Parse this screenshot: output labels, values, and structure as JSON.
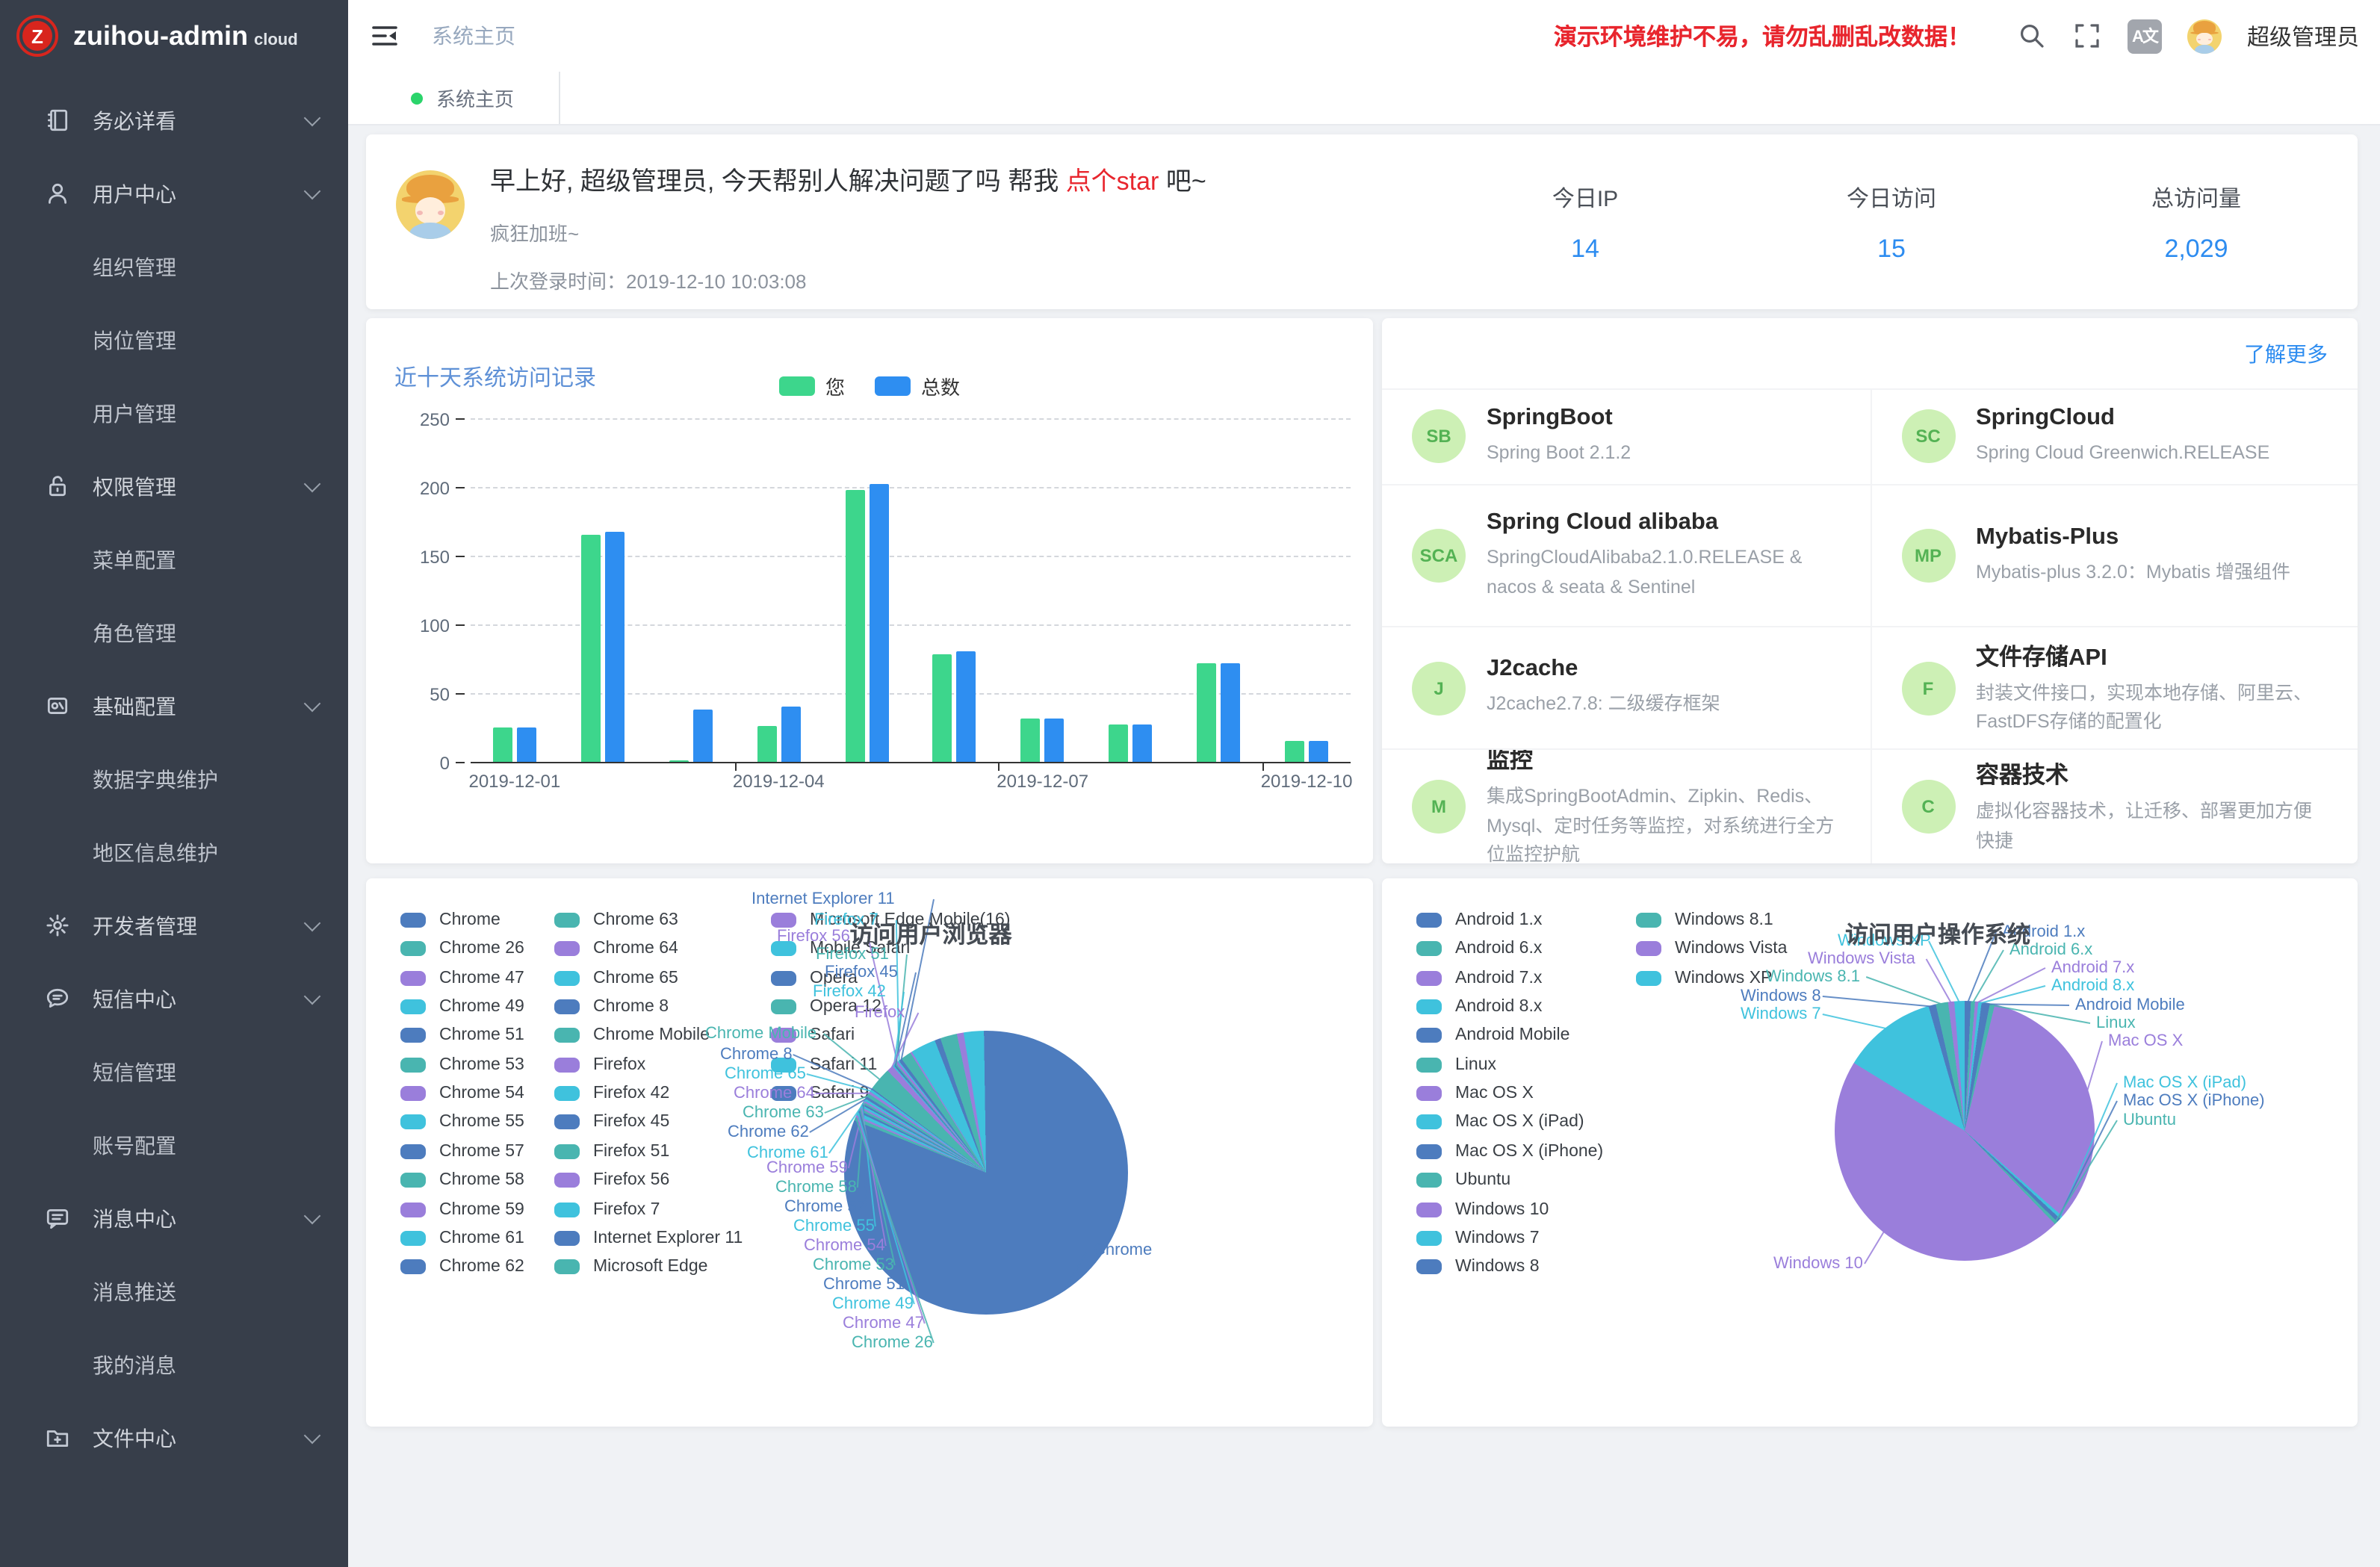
{
  "colors": {
    "accent_blue": "#2d8cf0",
    "danger_red": "#e8252d",
    "tab_dot_green": "#2bd46b",
    "sidebar_bg": "#373e4a",
    "palette": [
      "#4d7cbe",
      "#49b5b0",
      "#9a7edb",
      "#3fc2dd"
    ]
  },
  "sidebar": {
    "logo_letter": "Z",
    "logo_text": "zuihou-admin",
    "logo_badge": "cloud",
    "menu": [
      {
        "label": "务必详看",
        "type": "top",
        "icon": "book"
      },
      {
        "label": "用户中心",
        "type": "top",
        "icon": "user"
      },
      {
        "label": "组织管理",
        "type": "sub"
      },
      {
        "label": "岗位管理",
        "type": "sub"
      },
      {
        "label": "用户管理",
        "type": "sub"
      },
      {
        "label": "权限管理",
        "type": "top",
        "icon": "lock"
      },
      {
        "label": "菜单配置",
        "type": "sub"
      },
      {
        "label": "角色管理",
        "type": "sub"
      },
      {
        "label": "基础配置",
        "type": "top",
        "icon": "config"
      },
      {
        "label": "数据字典维护",
        "type": "sub"
      },
      {
        "label": "地区信息维护",
        "type": "sub"
      },
      {
        "label": "开发者管理",
        "type": "top",
        "icon": "gear"
      },
      {
        "label": "短信中心",
        "type": "top",
        "icon": "chat"
      },
      {
        "label": "短信管理",
        "type": "sub"
      },
      {
        "label": "账号配置",
        "type": "sub"
      },
      {
        "label": "消息中心",
        "type": "top",
        "icon": "message"
      },
      {
        "label": "消息推送",
        "type": "sub"
      },
      {
        "label": "我的消息",
        "type": "sub"
      },
      {
        "label": "文件中心",
        "type": "top",
        "icon": "folder"
      }
    ]
  },
  "topbar": {
    "breadcrumb": "系统主页",
    "warning": "演示环境维护不易，请勿乱删乱改数据！",
    "icons": [
      "search",
      "fullscreen",
      "translate"
    ],
    "translate_label": "A文",
    "username": "超级管理员"
  },
  "tabbar": {
    "active_tab": "系统主页"
  },
  "greeting": {
    "hello_prefix": "早上好, 超级管理员, 今天帮别人解决问题了吗 帮我 ",
    "star_text": "点个star",
    "hello_suffix": " 吧~",
    "subtitle": "疯狂加班~",
    "last_login_label": "上次登录时间：",
    "last_login_value": "2019-12-10 10:03:08"
  },
  "stats": [
    {
      "label": "今日IP",
      "value": "14"
    },
    {
      "label": "今日访问",
      "value": "15"
    },
    {
      "label": "总访问量",
      "value": "2,029"
    }
  ],
  "panel": {
    "more_link": "了解更多",
    "cards": [
      {
        "abbr": "SB",
        "title": "SpringBoot",
        "desc": "Spring Boot 2.1.2"
      },
      {
        "abbr": "SC",
        "title": "SpringCloud",
        "desc": "Spring Cloud Greenwich.RELEASE"
      },
      {
        "abbr": "SCA",
        "title": "Spring Cloud alibaba",
        "desc": "SpringCloudAlibaba2.1.0.RELEASE & nacos & seata & Sentinel"
      },
      {
        "abbr": "MP",
        "title": "Mybatis-Plus",
        "desc": "Mybatis-plus 3.2.0：Mybatis 增强组件"
      },
      {
        "abbr": "J",
        "title": "J2cache",
        "desc": "J2cache2.7.8: 二级缓存框架"
      },
      {
        "abbr": "F",
        "title": "文件存储API",
        "desc": "封装文件接口，实现本地存储、阿里云、FastDFS存储的配置化"
      },
      {
        "abbr": "M",
        "title": "监控",
        "desc": "集成SpringBootAdmin、Zipkin、Redis、Mysql、定时任务等监控，对系统进行全方位监控护航"
      },
      {
        "abbr": "C",
        "title": "容器技术",
        "desc": "虚拟化容器技术，让迁移、部署更加方便快捷"
      }
    ]
  },
  "chart_data": [
    {
      "type": "bar",
      "title": "近十天系统访问记录",
      "categories": [
        "2019-12-01",
        "2019-12-02",
        "2019-12-03",
        "2019-12-04",
        "2019-12-05",
        "2019-12-06",
        "2019-12-07",
        "2019-12-08",
        "2019-12-09",
        "2019-12-10"
      ],
      "series": [
        {
          "name": "您",
          "color": "#3dd68c",
          "values": [
            25,
            165,
            1,
            26,
            198,
            78,
            31,
            27,
            72,
            15
          ]
        },
        {
          "name": "总数",
          "color": "#2e8ef1",
          "values": [
            25,
            167,
            38,
            40,
            202,
            80,
            31,
            27,
            72,
            15
          ]
        }
      ],
      "xlabel": "",
      "ylabel": "",
      "ylim": [
        0,
        250
      ],
      "ytick_step": 50,
      "grid": "dashed",
      "legend_position": "top-center",
      "shown_x_labels": [
        "2019-12-01",
        "2019-12-04",
        "2019-12-07",
        "2019-12-10"
      ]
    },
    {
      "type": "pie",
      "title": "访问用户浏览器",
      "legend_position": "left-3-columns",
      "categories": [
        "Chrome",
        "Chrome 26",
        "Chrome 47",
        "Chrome 49",
        "Chrome 51",
        "Chrome 53",
        "Chrome 54",
        "Chrome 55",
        "Chrome 57",
        "Chrome 58",
        "Chrome 59",
        "Chrome 61",
        "Chrome 62",
        "Chrome 63",
        "Chrome 64",
        "Chrome 65",
        "Chrome 8",
        "Chrome Mobile",
        "Firefox",
        "Firefox 42",
        "Firefox 45",
        "Firefox 51",
        "Firefox 56",
        "Firefox 7",
        "Internet Explorer 11",
        "Microsoft Edge",
        "Microsoft Edge Mobile(16)",
        "Mobile Safari",
        "Opera",
        "Opera 12",
        "Safari",
        "Safari 11",
        "Safari 9"
      ],
      "values": [
        1690,
        8,
        5,
        8,
        5,
        5,
        4,
        5,
        4,
        4,
        4,
        5,
        6,
        8,
        6,
        6,
        3,
        55,
        16,
        3,
        4,
        3,
        6,
        3,
        8,
        25,
        4,
        60,
        14,
        40,
        16,
        48,
        5
      ],
      "callouts": [
        "Internet Explorer 11",
        "Firefox 7",
        "Firefox 56",
        "Firefox 51",
        "Firefox 45",
        "Firefox 42",
        "Firefox",
        "Chrome Mobile",
        "Chrome 8",
        "Chrome 65",
        "Chrome 64",
        "Chrome 63",
        "Chrome 62",
        "Chrome 61",
        "Chrome 59",
        "Chrome 58",
        "Chrome 57",
        "Chrome 55",
        "Chrome 54",
        "Chrome 53",
        "Chrome 51",
        "Chrome 49",
        "Chrome 47",
        "Chrome 26",
        "Chrome"
      ]
    },
    {
      "type": "pie",
      "title": "访问用户操作系统",
      "legend_position": "left-2-columns",
      "categories": [
        "Android 1.x",
        "Android 6.x",
        "Android 7.x",
        "Android 8.x",
        "Android Mobile",
        "Linux",
        "Mac OS X",
        "Mac OS X (iPad)",
        "Mac OS X (iPhone)",
        "Ubuntu",
        "Windows 10",
        "Windows 7",
        "Windows 8",
        "Windows 8.1",
        "Windows Vista",
        "Windows XP"
      ],
      "values": [
        15,
        10,
        8,
        8,
        20,
        12,
        640,
        8,
        10,
        8,
        900,
        230,
        18,
        30,
        15,
        25
      ],
      "callouts": [
        "Windows XP",
        "Windows Vista",
        "Windows 8.1",
        "Windows 8",
        "Windows 7",
        "Windows 10",
        "Android 1.x",
        "Android 6.x",
        "Android 7.x",
        "Android 8.x",
        "Android Mobile",
        "Linux",
        "Mac OS X",
        "Mac OS X (iPad)",
        "Mac OS X (iPhone)",
        "Ubuntu"
      ]
    }
  ]
}
